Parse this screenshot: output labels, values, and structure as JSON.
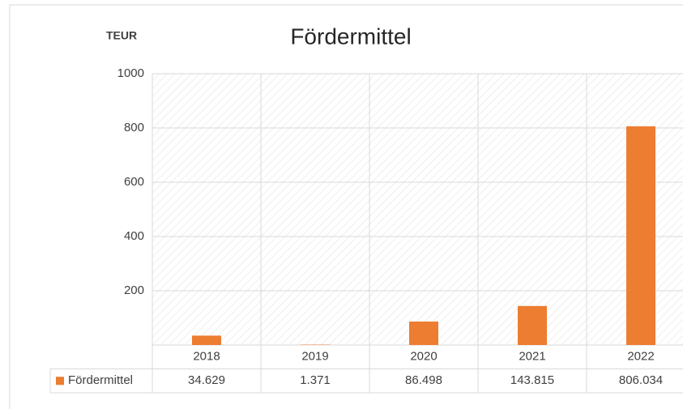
{
  "chart_data": {
    "type": "bar",
    "title": "Fördermittel",
    "y_label": "TEUR",
    "categories": [
      "2018",
      "2019",
      "2020",
      "2021",
      "2022"
    ],
    "series": [
      {
        "name": "Fördermittel",
        "color": "#ed7d31",
        "values": [
          34.629,
          1.371,
          86.498,
          143.815,
          806.034
        ]
      }
    ],
    "ylim": [
      0,
      1000
    ],
    "yticks": [
      200,
      400,
      600,
      800,
      1000
    ],
    "grid": true,
    "legend": "bottom"
  }
}
